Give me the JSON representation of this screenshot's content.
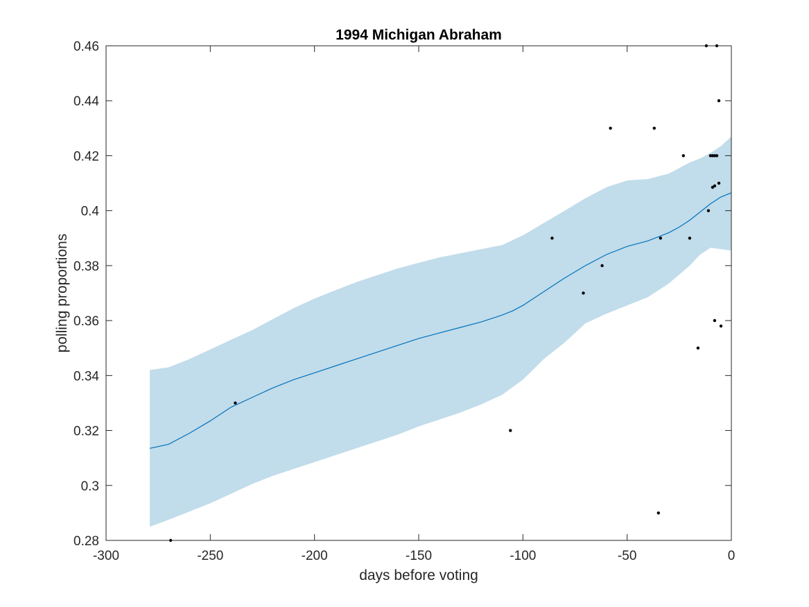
{
  "chart_data": {
    "type": "line",
    "title": "1994 Michigan Abraham",
    "xlabel": "days before voting",
    "ylabel": "polling proportions",
    "xlim": [
      -300,
      0
    ],
    "ylim": [
      0.28,
      0.46
    ],
    "xticks": [
      -300,
      -250,
      -200,
      -150,
      -100,
      -50,
      0
    ],
    "yticks": [
      0.28,
      0.3,
      0.32,
      0.34,
      0.36,
      0.38,
      0.4,
      0.42,
      0.44,
      0.46
    ],
    "xtick_labels": [
      "-300",
      "-250",
      "-200",
      "-150",
      "-100",
      "-50",
      "0"
    ],
    "ytick_labels": [
      "0.28",
      "0.3",
      "0.32",
      "0.34",
      "0.36",
      "0.38",
      "0.4",
      "0.42",
      "0.44",
      "0.46"
    ],
    "grid": false,
    "colors": {
      "line": "#0072bd",
      "band": "#c1dcea",
      "points": "#000000",
      "axes": "#262626"
    },
    "trend": {
      "x": [
        -279,
        -270,
        -260,
        -250,
        -240,
        -230,
        -220,
        -210,
        -200,
        -190,
        -180,
        -170,
        -160,
        -150,
        -140,
        -130,
        -120,
        -110,
        -105,
        -100,
        -90,
        -80,
        -70,
        -60,
        -50,
        -40,
        -35,
        -30,
        -25,
        -20,
        -15,
        -10,
        -5,
        0
      ],
      "y": [
        0.3135,
        0.315,
        0.319,
        0.3235,
        0.3285,
        0.332,
        0.3355,
        0.3385,
        0.341,
        0.3435,
        0.346,
        0.3485,
        0.351,
        0.3535,
        0.3555,
        0.3575,
        0.3595,
        0.362,
        0.3635,
        0.3655,
        0.3705,
        0.3755,
        0.38,
        0.384,
        0.387,
        0.389,
        0.3905,
        0.392,
        0.394,
        0.3965,
        0.3995,
        0.4025,
        0.405,
        0.4065
      ]
    },
    "band": {
      "x": [
        -279,
        -270,
        -260,
        -250,
        -240,
        -230,
        -220,
        -210,
        -200,
        -190,
        -180,
        -170,
        -160,
        -150,
        -140,
        -130,
        -120,
        -110,
        -100,
        -90,
        -80,
        -70,
        -60,
        -50,
        -40,
        -30,
        -20,
        -15,
        -10,
        -5,
        0
      ],
      "upper": [
        0.342,
        0.343,
        0.346,
        0.3495,
        0.353,
        0.3565,
        0.3605,
        0.3645,
        0.368,
        0.371,
        0.374,
        0.3765,
        0.379,
        0.381,
        0.383,
        0.3845,
        0.386,
        0.3875,
        0.391,
        0.3955,
        0.4,
        0.4045,
        0.4085,
        0.411,
        0.4115,
        0.4135,
        0.4175,
        0.419,
        0.421,
        0.4235,
        0.427
      ],
      "lower": [
        0.285,
        0.2875,
        0.2905,
        0.2935,
        0.297,
        0.3005,
        0.3035,
        0.306,
        0.3085,
        0.311,
        0.3135,
        0.316,
        0.3185,
        0.3215,
        0.324,
        0.3265,
        0.3295,
        0.333,
        0.3385,
        0.346,
        0.352,
        0.359,
        0.3625,
        0.3655,
        0.3685,
        0.3735,
        0.38,
        0.384,
        0.3865,
        0.386,
        0.3855
      ]
    },
    "points": [
      {
        "x": -269,
        "y": 0.28
      },
      {
        "x": -238,
        "y": 0.33
      },
      {
        "x": -106,
        "y": 0.32
      },
      {
        "x": -86,
        "y": 0.39
      },
      {
        "x": -71,
        "y": 0.37
      },
      {
        "x": -62,
        "y": 0.38
      },
      {
        "x": -58,
        "y": 0.43
      },
      {
        "x": -37,
        "y": 0.43
      },
      {
        "x": -35,
        "y": 0.29
      },
      {
        "x": -34,
        "y": 0.39
      },
      {
        "x": -23,
        "y": 0.42
      },
      {
        "x": -20,
        "y": 0.39
      },
      {
        "x": -16,
        "y": 0.35
      },
      {
        "x": -12,
        "y": 0.46
      },
      {
        "x": -11,
        "y": 0.4
      },
      {
        "x": -10,
        "y": 0.42
      },
      {
        "x": -9,
        "y": 0.42
      },
      {
        "x": -9,
        "y": 0.4085
      },
      {
        "x": -8,
        "y": 0.42
      },
      {
        "x": -8,
        "y": 0.409
      },
      {
        "x": -8,
        "y": 0.36
      },
      {
        "x": -7,
        "y": 0.42
      },
      {
        "x": -7,
        "y": 0.46
      },
      {
        "x": -6,
        "y": 0.41
      },
      {
        "x": -6,
        "y": 0.44
      },
      {
        "x": -5,
        "y": 0.358
      }
    ]
  }
}
